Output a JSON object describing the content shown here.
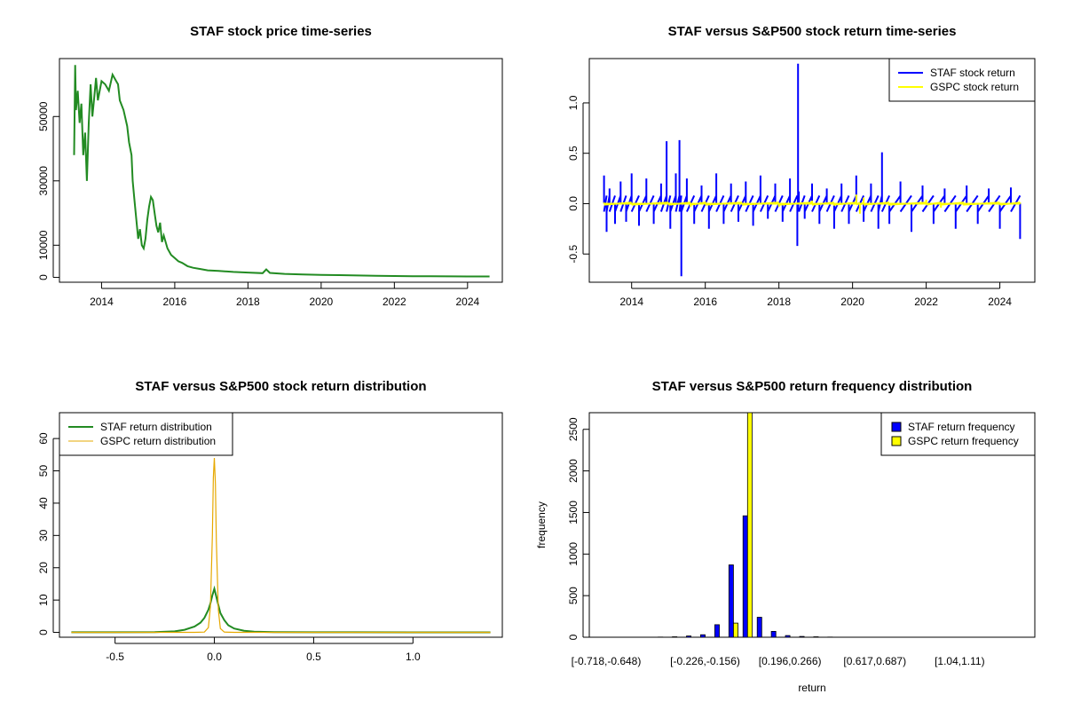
{
  "colors": {
    "staf_price": "#228B22",
    "staf_return": "#0000FF",
    "gspc_return": "#FFFF00",
    "staf_density": "#228B22",
    "gspc_density": "#E6A800",
    "staf_freq": "#0000FF",
    "gspc_freq": "#FFFF00"
  },
  "chart_data": [
    {
      "id": "price",
      "type": "line",
      "title": "STAF stock price time-series",
      "xlabel": "",
      "ylabel": "",
      "xlim": [
        2012.85,
        2024.95
      ],
      "ylim": [
        -1500,
        68000
      ],
      "xticks": [
        2014,
        2016,
        2018,
        2020,
        2022,
        2024
      ],
      "xtick_labels": [
        "2014",
        "2016",
        "2018",
        "2020",
        "2022",
        "2024"
      ],
      "yticks": [
        0,
        10000,
        30000,
        50000
      ],
      "ytick_labels": [
        "0",
        "10000",
        "30000",
        "50000"
      ],
      "grid": false,
      "series": [
        {
          "color_key": "staf_price",
          "x": [
            2013.25,
            2013.28,
            2013.3,
            2013.35,
            2013.4,
            2013.45,
            2013.5,
            2013.55,
            2013.6,
            2013.65,
            2013.7,
            2013.75,
            2013.8,
            2013.85,
            2013.9,
            2014.0,
            2014.1,
            2014.2,
            2014.3,
            2014.4,
            2014.45,
            2014.5,
            2014.6,
            2014.7,
            2014.75,
            2014.82,
            2014.85,
            2014.9,
            2014.95,
            2015.0,
            2015.05,
            2015.1,
            2015.15,
            2015.2,
            2015.25,
            2015.3,
            2015.35,
            2015.4,
            2015.45,
            2015.5,
            2015.55,
            2015.6,
            2015.65,
            2015.7,
            2015.8,
            2015.9,
            2016.0,
            2016.1,
            2016.2,
            2016.35,
            2016.5,
            2016.7,
            2016.9,
            2017.2,
            2017.6,
            2018.0,
            2018.4,
            2018.5,
            2018.6,
            2019.0,
            2019.5,
            2020.0,
            2020.5,
            2021.0,
            2021.5,
            2022.0,
            2022.5,
            2023.0,
            2023.5,
            2024.0,
            2024.6
          ],
          "y": [
            38000,
            66000,
            52000,
            58000,
            48000,
            54000,
            38000,
            45000,
            30000,
            48000,
            60000,
            50000,
            56000,
            62000,
            55000,
            61000,
            60000,
            58000,
            63000,
            61000,
            60000,
            55000,
            52000,
            47000,
            42000,
            38000,
            30000,
            24000,
            18000,
            12000,
            15000,
            10000,
            9000,
            12000,
            18000,
            22000,
            25000,
            24000,
            20000,
            16000,
            14000,
            17000,
            11000,
            13000,
            9000,
            7000,
            6000,
            5000,
            4500,
            3500,
            3000,
            2600,
            2200,
            2000,
            1700,
            1500,
            1300,
            2500,
            1400,
            1100,
            900,
            800,
            700,
            600,
            500,
            420,
            380,
            350,
            320,
            300,
            280
          ]
        }
      ]
    },
    {
      "id": "returns",
      "type": "line",
      "title": "STAF versus S&P500 stock return time-series",
      "xlabel": "",
      "ylabel": "",
      "xlim": [
        2012.85,
        2024.95
      ],
      "ylim": [
        -0.78,
        1.44
      ],
      "xticks": [
        2014,
        2016,
        2018,
        2020,
        2022,
        2024
      ],
      "xtick_labels": [
        "2014",
        "2016",
        "2018",
        "2020",
        "2022",
        "2024"
      ],
      "yticks": [
        -0.5,
        0.0,
        0.5,
        1.0
      ],
      "ytick_labels": [
        "-0.5",
        "0.0",
        "0.5",
        "1.0"
      ],
      "grid": false,
      "legend_position": "top-right",
      "series": [
        {
          "name": "STAF stock return",
          "color_key": "staf_return",
          "x": [
            2013.25,
            2013.32,
            2013.4,
            2013.55,
            2013.7,
            2013.85,
            2014.0,
            2014.2,
            2014.4,
            2014.6,
            2014.8,
            2014.95,
            2015.05,
            2015.2,
            2015.3,
            2015.35,
            2015.5,
            2015.7,
            2015.9,
            2016.1,
            2016.3,
            2016.5,
            2016.7,
            2016.9,
            2017.1,
            2017.3,
            2017.5,
            2017.7,
            2017.9,
            2018.1,
            2018.3,
            2018.5,
            2018.52,
            2018.54,
            2018.7,
            2018.9,
            2019.1,
            2019.3,
            2019.5,
            2019.7,
            2019.9,
            2020.1,
            2020.3,
            2020.5,
            2020.7,
            2020.8,
            2021.0,
            2021.3,
            2021.6,
            2021.9,
            2022.2,
            2022.5,
            2022.8,
            2023.1,
            2023.4,
            2023.7,
            2024.0,
            2024.3,
            2024.55
          ],
          "y": [
            0.28,
            -0.28,
            0.15,
            -0.2,
            0.22,
            -0.18,
            0.3,
            -0.22,
            0.25,
            -0.2,
            0.2,
            0.62,
            -0.25,
            0.3,
            0.63,
            -0.72,
            0.25,
            -0.2,
            0.18,
            -0.25,
            0.3,
            -0.2,
            0.2,
            -0.18,
            0.22,
            -0.22,
            0.28,
            -0.15,
            0.2,
            -0.18,
            0.25,
            -0.42,
            1.39,
            0.12,
            -0.15,
            0.2,
            -0.2,
            0.15,
            -0.25,
            0.2,
            -0.2,
            0.28,
            -0.18,
            0.2,
            -0.25,
            0.51,
            -0.2,
            0.22,
            -0.28,
            0.18,
            -0.2,
            0.15,
            -0.25,
            0.18,
            -0.2,
            0.15,
            -0.25,
            0.16,
            -0.35
          ]
        },
        {
          "name": "GSPC stock return",
          "color_key": "gspc_return",
          "x": [
            2013.25,
            2014.0,
            2015.0,
            2015.6,
            2016.0,
            2017.0,
            2018.0,
            2018.9,
            2019.5,
            2020.1,
            2020.2,
            2020.3,
            2021.0,
            2022.0,
            2022.4,
            2023.0,
            2024.0,
            2024.55
          ],
          "y": [
            0.01,
            -0.01,
            0.01,
            -0.03,
            0.02,
            0.005,
            -0.03,
            0.03,
            -0.02,
            0.09,
            -0.1,
            0.06,
            -0.02,
            0.04,
            -0.04,
            0.02,
            -0.01,
            0.01
          ]
        }
      ]
    },
    {
      "id": "density",
      "type": "line",
      "title": "STAF versus S&P500 stock return distribution",
      "xlabel": "",
      "ylabel": "",
      "xlim": [
        -0.78,
        1.45
      ],
      "ylim": [
        -1.5,
        68
      ],
      "xticks": [
        -0.5,
        0.0,
        0.5,
        1.0
      ],
      "xtick_labels": [
        "-0.5",
        "0.0",
        "0.5",
        "1.0"
      ],
      "yticks": [
        0,
        10,
        20,
        30,
        40,
        50,
        60
      ],
      "ytick_labels": [
        "0",
        "10",
        "20",
        "30",
        "40",
        "50",
        "60"
      ],
      "grid": false,
      "legend_position": "top-left",
      "series": [
        {
          "name": "STAF return distribution",
          "color_key": "staf_density",
          "x": [
            -0.72,
            -0.5,
            -0.3,
            -0.2,
            -0.15,
            -0.1,
            -0.07,
            -0.05,
            -0.03,
            -0.02,
            -0.01,
            0.0,
            0.01,
            0.02,
            0.03,
            0.05,
            0.07,
            0.1,
            0.15,
            0.2,
            0.3,
            0.5,
            0.7,
            1.0,
            1.2,
            1.39
          ],
          "y": [
            0.05,
            0.05,
            0.1,
            0.3,
            0.8,
            1.8,
            3.0,
            4.5,
            7.0,
            9.0,
            11.5,
            13.5,
            11.0,
            8.5,
            6.0,
            3.8,
            2.2,
            1.2,
            0.5,
            0.2,
            0.1,
            0.05,
            0.03,
            0.02,
            0.02,
            0.02
          ]
        },
        {
          "name": "GSPC return distribution",
          "color_key": "gspc_density",
          "x": [
            -0.72,
            -0.1,
            -0.05,
            -0.03,
            -0.02,
            -0.01,
            -0.005,
            0.0,
            0.005,
            0.01,
            0.02,
            0.03,
            0.05,
            0.1,
            1.39
          ],
          "y": [
            0.0,
            0.0,
            0.1,
            1.5,
            8.0,
            30.0,
            48.0,
            54.0,
            46.0,
            28.0,
            7.0,
            1.2,
            0.1,
            0.0,
            0.0
          ]
        }
      ]
    },
    {
      "id": "frequency",
      "type": "bar",
      "title": "STAF versus S&P500 return frequency distribution",
      "xlabel": "return",
      "ylabel": "frequency",
      "ylim": [
        0,
        2700
      ],
      "yticks": [
        0,
        500,
        1000,
        1500,
        2000,
        2500
      ],
      "ytick_labels": [
        "0",
        "500",
        "1000",
        "1500",
        "2000",
        "2500"
      ],
      "category_tick_labels": [
        {
          "index": 0,
          "label": "[-0.718,-0.648)"
        },
        {
          "index": 7,
          "label": "[-0.226,-0.156)"
        },
        {
          "index": 13,
          "label": "[0.196,0.266)"
        },
        {
          "index": 19,
          "label": "[0.617,0.687)"
        },
        {
          "index": 25,
          "label": "[1.04,1.11)"
        }
      ],
      "legend_position": "top-right",
      "categories": [
        "[-0.718,-0.648)",
        "[-0.648,-0.578)",
        "[-0.578,-0.507)",
        "[-0.507,-0.437)",
        "[-0.437,-0.367)",
        "[-0.367,-0.296)",
        "[-0.296,-0.226)",
        "[-0.226,-0.156)",
        "[-0.156,-0.0854)",
        "[-0.0854,-0.0151)",
        "[-0.0151,0.0552)",
        "[0.0552,0.126)",
        "[0.126,0.196)",
        "[0.196,0.266)",
        "[0.266,0.336)",
        "[0.336,0.407)",
        "[0.407,0.477)",
        "[0.477,0.547)",
        "[0.547,0.617)",
        "[0.617,0.687)",
        "[0.687,0.758)",
        "[0.758,0.828)",
        "[0.828,0.898)",
        "[0.898,0.969)",
        "[0.969,1.04)",
        "[1.04,1.11)",
        "[1.11,1.18)",
        "[1.18,1.25)",
        "[1.25,1.32)",
        "[1.32,1.39)"
      ],
      "series": [
        {
          "name": "STAF return frequency",
          "color_key": "staf_freq",
          "values": [
            1,
            0,
            0,
            0,
            2,
            5,
            15,
            30,
            150,
            870,
            1460,
            240,
            70,
            20,
            10,
            5,
            2,
            1,
            1,
            0,
            0,
            0,
            0,
            0,
            0,
            0,
            0,
            0,
            0,
            1
          ]
        },
        {
          "name": "GSPC return frequency",
          "color_key": "gspc_freq",
          "values": [
            0,
            0,
            0,
            0,
            0,
            0,
            0,
            0,
            0,
            170,
            2700,
            0,
            0,
            0,
            0,
            0,
            0,
            0,
            0,
            0,
            0,
            0,
            0,
            0,
            0,
            0,
            0,
            0,
            0,
            0
          ]
        }
      ]
    }
  ]
}
